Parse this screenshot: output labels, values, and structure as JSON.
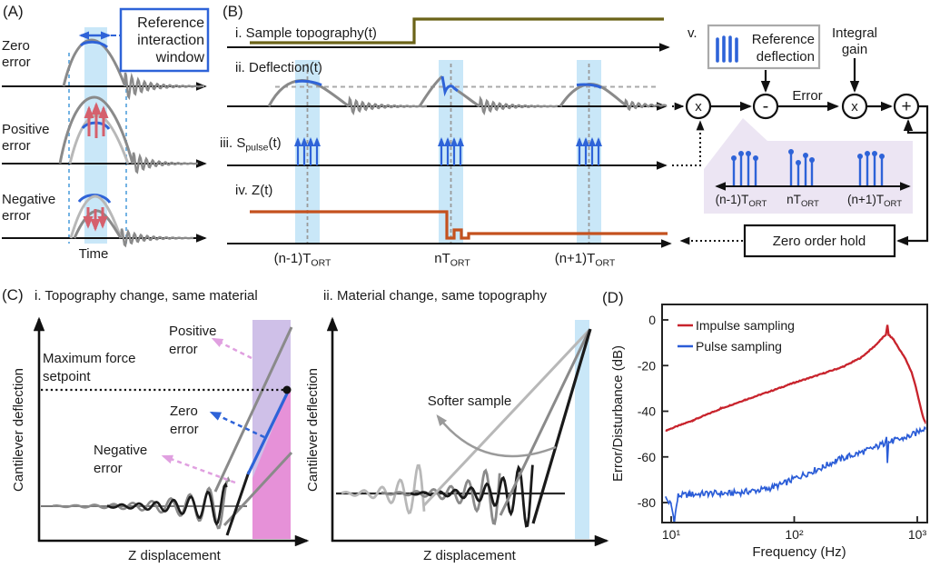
{
  "colors": {
    "blue": "#2e63d8",
    "olive": "#6b6318",
    "orange": "#c4511e",
    "red_arrow": "#d5606d",
    "gray": "#8a8a8a",
    "light_gray": "#b8b8b8",
    "band_blue": "#c9e7f8",
    "band_lavender": "#cfc0e8",
    "band_pink": "#e691d8",
    "pentagon": "#ece5f3",
    "dash_cyan": "#74b3e3",
    "dash_gray": "#9a9a9a"
  },
  "panelA": {
    "label": "(A)",
    "zero": [
      "Zero",
      "error"
    ],
    "positive": [
      "Positive",
      "error"
    ],
    "negative": [
      "Negative",
      "error"
    ],
    "ref_window": [
      "Reference",
      "interaction",
      "window"
    ],
    "time": "Time"
  },
  "panelB": {
    "label": "(B)",
    "sig_i": "i. Sample topography(t)",
    "sig_ii": "ii. Deflection(t)",
    "sig_iii_pre": "iii. S",
    "sig_iii_sub": "pulse",
    "sig_iii_post": "(t)",
    "sig_iv": "iv. Z(t)",
    "v_label": "v.",
    "ref_deflection": [
      "Reference",
      "deflection"
    ],
    "integral_gain": [
      "Integral",
      "gain"
    ],
    "error": "Error",
    "times": "x",
    "minus": "-",
    "plus": "+",
    "zoh": "Zero order hold",
    "t1_pre": "(n-1)T",
    "t1_sub": "ORT",
    "t2_pre": "nT",
    "t2_sub": "ORT",
    "t3_pre": "(n+1)T",
    "t3_sub": "ORT"
  },
  "panelC": {
    "label": "(C)",
    "title_i": "i. Topography change, same material",
    "title_ii": "ii. Material change, same topography",
    "ylabel": "Cantilever deflection",
    "xlabel": "Z displacement",
    "max_force": [
      "Maximum force",
      "setpoint"
    ],
    "positive": [
      "Positive",
      "error"
    ],
    "zero": [
      "Zero",
      "error"
    ],
    "negative": [
      "Negative",
      "error"
    ],
    "softer": "Softer sample"
  },
  "panelD": {
    "label": "(D)"
  },
  "chart_data": {
    "type": "line",
    "title": "",
    "xlabel": "Frequency (Hz)",
    "ylabel": "Error/Disturbance (dB)",
    "x_scale": "log",
    "xlim": [
      9,
      1300
    ],
    "ylim": [
      -92,
      4
    ],
    "grid": false,
    "legend_position": "top-left",
    "x_ticks": [
      {
        "value": 10,
        "label": "10¹"
      },
      {
        "value": 100,
        "label": "10²"
      },
      {
        "value": 1000,
        "label": "10³"
      }
    ],
    "y_ticks": [
      {
        "value": 0,
        "label": "0"
      },
      {
        "value": -20,
        "label": "-20"
      },
      {
        "value": -40,
        "label": "-40"
      },
      {
        "value": -60,
        "label": "-60"
      },
      {
        "value": -80,
        "label": "-80"
      }
    ],
    "series": [
      {
        "name": "Impulse sampling",
        "color": "#c8232c",
        "noise_db": 0.2,
        "points": [
          [
            9,
            -48.5
          ],
          [
            15,
            -44
          ],
          [
            25,
            -39
          ],
          [
            40,
            -35
          ],
          [
            70,
            -30.5
          ],
          [
            100,
            -27.5
          ],
          [
            150,
            -24.5
          ],
          [
            250,
            -20.5
          ],
          [
            350,
            -16.5
          ],
          [
            450,
            -11.5
          ],
          [
            520,
            -8
          ],
          [
            555,
            -6.5
          ],
          [
            572,
            -2.3
          ],
          [
            585,
            -6.5
          ],
          [
            640,
            -8.5
          ],
          [
            700,
            -12
          ],
          [
            800,
            -17
          ],
          [
            900,
            -23
          ],
          [
            980,
            -30
          ],
          [
            1060,
            -38
          ],
          [
            1120,
            -43
          ],
          [
            1180,
            -45.5
          ]
        ]
      },
      {
        "name": "Pulse sampling",
        "color": "#2a5cd7",
        "noise_db": 1.4,
        "points": [
          [
            9,
            -78
          ],
          [
            10,
            -81
          ],
          [
            10.6,
            -88
          ],
          [
            11.4,
            -77
          ],
          [
            14,
            -76.5
          ],
          [
            20,
            -76
          ],
          [
            30,
            -76
          ],
          [
            45,
            -75
          ],
          [
            60,
            -74
          ],
          [
            80,
            -72
          ],
          [
            100,
            -69.5
          ],
          [
            130,
            -67
          ],
          [
            170,
            -64.5
          ],
          [
            220,
            -61.5
          ],
          [
            270,
            -60
          ],
          [
            330,
            -58.5
          ],
          [
            400,
            -57
          ],
          [
            470,
            -55.5
          ],
          [
            540,
            -54
          ],
          [
            562,
            -50
          ],
          [
            572,
            -62
          ],
          [
            585,
            -53.5
          ],
          [
            650,
            -53
          ],
          [
            750,
            -52
          ],
          [
            850,
            -51
          ],
          [
            950,
            -50
          ],
          [
            1080,
            -48
          ],
          [
            1200,
            -46.5
          ]
        ]
      }
    ]
  }
}
